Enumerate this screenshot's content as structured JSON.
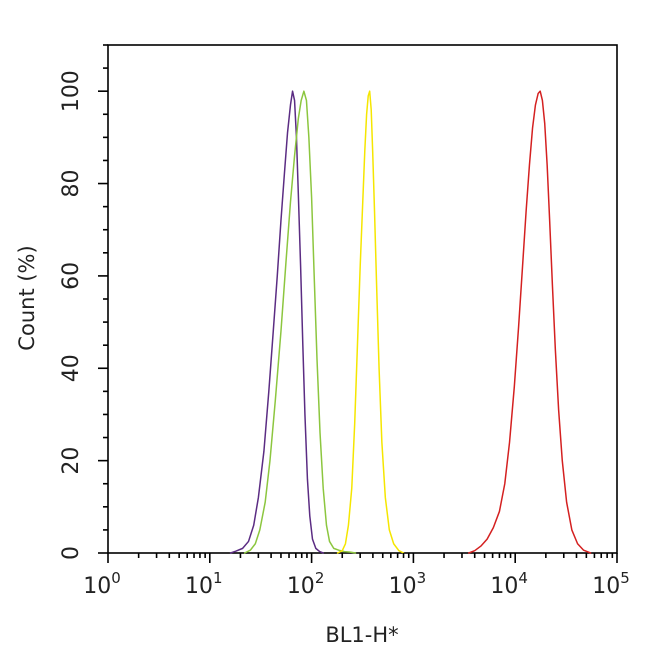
{
  "chart_data": {
    "type": "line",
    "title": "",
    "xlabel": "BL1-H*",
    "ylabel": "Count (%)",
    "xscale": "log",
    "xlim": [
      1,
      100000
    ],
    "ylim": [
      0,
      110
    ],
    "grid": false,
    "x_ticks": [
      {
        "base": "10",
        "exp": "0",
        "value": 1
      },
      {
        "base": "10",
        "exp": "1",
        "value": 10
      },
      {
        "base": "10",
        "exp": "2",
        "value": 100
      },
      {
        "base": "10",
        "exp": "3",
        "value": 1000
      },
      {
        "base": "10",
        "exp": "4",
        "value": 10000
      },
      {
        "base": "10",
        "exp": "5",
        "value": 100000
      }
    ],
    "y_ticks": [
      "0",
      "20",
      "40",
      "60",
      "80",
      "100"
    ],
    "series": [
      {
        "color": "#5b2c83",
        "points": [
          [
            16,
            0
          ],
          [
            18,
            0.4
          ],
          [
            21,
            1
          ],
          [
            24,
            2.5
          ],
          [
            27,
            6
          ],
          [
            30,
            12
          ],
          [
            34,
            22
          ],
          [
            38,
            35
          ],
          [
            42,
            48
          ],
          [
            46,
            60
          ],
          [
            50,
            72
          ],
          [
            54,
            82
          ],
          [
            58,
            91
          ],
          [
            62,
            97
          ],
          [
            65,
            100
          ],
          [
            68,
            98
          ],
          [
            71,
            90
          ],
          [
            74,
            78
          ],
          [
            78,
            62
          ],
          [
            82,
            45
          ],
          [
            86,
            30
          ],
          [
            91,
            16
          ],
          [
            96,
            8
          ],
          [
            102,
            3
          ],
          [
            110,
            1
          ],
          [
            120,
            0.3
          ],
          [
            130,
            0
          ]
        ]
      },
      {
        "color": "#8cc63f",
        "points": [
          [
            22,
            0
          ],
          [
            25,
            0.6
          ],
          [
            28,
            2
          ],
          [
            31,
            5
          ],
          [
            35,
            11
          ],
          [
            39,
            20
          ],
          [
            44,
            33
          ],
          [
            50,
            48
          ],
          [
            56,
            63
          ],
          [
            62,
            76
          ],
          [
            68,
            86
          ],
          [
            74,
            94
          ],
          [
            79,
            98
          ],
          [
            84,
            100
          ],
          [
            89,
            98
          ],
          [
            94,
            90
          ],
          [
            100,
            77
          ],
          [
            106,
            60
          ],
          [
            113,
            42
          ],
          [
            121,
            26
          ],
          [
            130,
            14
          ],
          [
            140,
            6
          ],
          [
            150,
            2.5
          ],
          [
            165,
            1
          ],
          [
            185,
            0.6
          ],
          [
            210,
            0.3
          ],
          [
            240,
            0.2
          ],
          [
            270,
            0
          ]
        ]
      },
      {
        "color": "#f5e600",
        "points": [
          [
            180,
            0
          ],
          [
            200,
            0.5
          ],
          [
            215,
            2
          ],
          [
            230,
            6
          ],
          [
            248,
            14
          ],
          [
            265,
            28
          ],
          [
            282,
            45
          ],
          [
            300,
            62
          ],
          [
            318,
            76
          ],
          [
            333,
            87
          ],
          [
            347,
            95
          ],
          [
            360,
            99
          ],
          [
            372,
            100
          ],
          [
            385,
            96
          ],
          [
            398,
            87
          ],
          [
            415,
            74
          ],
          [
            435,
            58
          ],
          [
            460,
            40
          ],
          [
            490,
            24
          ],
          [
            530,
            12
          ],
          [
            580,
            5
          ],
          [
            640,
            2
          ],
          [
            720,
            0.5
          ],
          [
            800,
            0
          ]
        ]
      },
      {
        "color": "#d42020",
        "points": [
          [
            3500,
            0
          ],
          [
            4000,
            0.5
          ],
          [
            4600,
            1.5
          ],
          [
            5300,
            3
          ],
          [
            6100,
            5.5
          ],
          [
            7000,
            9
          ],
          [
            7900,
            15
          ],
          [
            8800,
            24
          ],
          [
            9800,
            36
          ],
          [
            10800,
            49
          ],
          [
            11800,
            62
          ],
          [
            12800,
            74
          ],
          [
            13800,
            84
          ],
          [
            14800,
            92
          ],
          [
            15800,
            97
          ],
          [
            16800,
            99.5
          ],
          [
            17600,
            100
          ],
          [
            18500,
            98
          ],
          [
            19500,
            93
          ],
          [
            20600,
            84
          ],
          [
            21800,
            72
          ],
          [
            23200,
            58
          ],
          [
            24800,
            44
          ],
          [
            26700,
            31
          ],
          [
            29000,
            20
          ],
          [
            32000,
            11
          ],
          [
            36000,
            5
          ],
          [
            41000,
            2
          ],
          [
            47000,
            0.6
          ],
          [
            55000,
            0
          ]
        ]
      }
    ]
  }
}
